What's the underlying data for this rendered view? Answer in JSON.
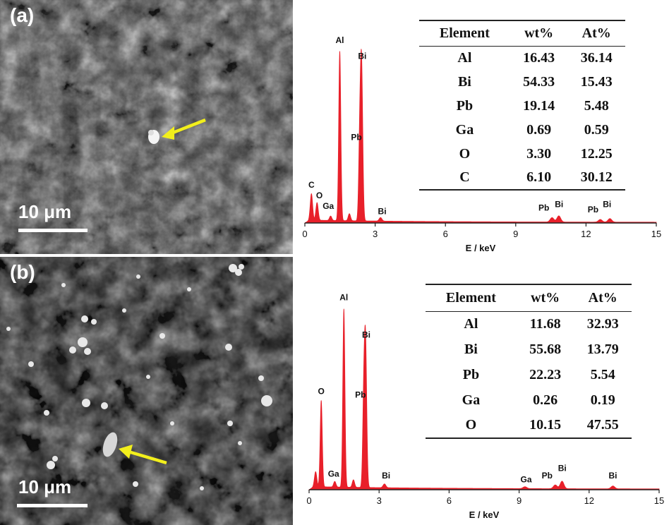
{
  "panels": [
    {
      "label": "(a)",
      "scale_bar": "10 μm",
      "eds_table": {
        "headers": [
          "Element",
          "wt%",
          "At%"
        ],
        "rows": [
          [
            "Al",
            "16.43",
            "36.14"
          ],
          [
            "Bi",
            "54.33",
            "15.43"
          ],
          [
            "Pb",
            "19.14",
            "5.48"
          ],
          [
            "Ga",
            "0.69",
            "0.59"
          ],
          [
            "O",
            "3.30",
            "12.25"
          ],
          [
            "C",
            "6.10",
            "30.12"
          ]
        ]
      }
    },
    {
      "label": "(b)",
      "scale_bar": "10 μm",
      "eds_table": {
        "headers": [
          "Element",
          "wt%",
          "At%"
        ],
        "rows": [
          [
            "Al",
            "11.68",
            "32.93"
          ],
          [
            "Bi",
            "55.68",
            "13.79"
          ],
          [
            "Pb",
            "22.23",
            "5.54"
          ],
          [
            "Ga",
            "0.26",
            "0.19"
          ],
          [
            "O",
            "10.15",
            "47.55"
          ]
        ]
      }
    }
  ],
  "colors": {
    "spectrum": "#e8202a",
    "arrow": "#f2ef1c",
    "axis": "#222222"
  },
  "chart_data": [
    {
      "type": "line",
      "xlabel": "E / keV",
      "ylabel": "",
      "xlim": [
        0,
        15
      ],
      "ylim": [
        0,
        100
      ],
      "xticks": [
        0,
        3,
        6,
        9,
        12,
        15
      ],
      "peaks": [
        {
          "e": 0.28,
          "h": 15,
          "w": 0.05
        },
        {
          "e": 0.52,
          "h": 10,
          "w": 0.05
        },
        {
          "e": 1.1,
          "h": 2.5,
          "w": 0.05
        },
        {
          "e": 1.49,
          "h": 96,
          "w": 0.045
        },
        {
          "e": 1.9,
          "h": 4,
          "w": 0.05
        },
        {
          "e": 2.34,
          "h": 40,
          "w": 0.045
        },
        {
          "e": 2.42,
          "h": 87,
          "w": 0.05
        },
        {
          "e": 3.23,
          "h": 2,
          "w": 0.06
        },
        {
          "e": 10.55,
          "h": 2.5,
          "w": 0.08
        },
        {
          "e": 10.84,
          "h": 3.5,
          "w": 0.08
        },
        {
          "e": 12.61,
          "h": 1.5,
          "w": 0.08
        },
        {
          "e": 13.02,
          "h": 2,
          "w": 0.08
        }
      ],
      "peak_labels": [
        {
          "text": "C",
          "x": 0.28,
          "y": 20
        },
        {
          "text": "O",
          "x": 0.62,
          "y": 14
        },
        {
          "text": "Ga",
          "x": 1.0,
          "y": 8
        },
        {
          "text": "Al",
          "x": 1.49,
          "y": 102
        },
        {
          "text": "Bi",
          "x": 2.45,
          "y": 93
        },
        {
          "text": "Pb",
          "x": 2.2,
          "y": 47
        },
        {
          "text": "Bi",
          "x": 3.3,
          "y": 5
        },
        {
          "text": "Pb",
          "x": 10.2,
          "y": 7
        },
        {
          "text": "Bi",
          "x": 10.85,
          "y": 9
        },
        {
          "text": "Pb",
          "x": 12.3,
          "y": 6
        },
        {
          "text": "Bi",
          "x": 12.9,
          "y": 9
        }
      ]
    },
    {
      "type": "line",
      "xlabel": "E / keV",
      "ylabel": "",
      "xlim": [
        0,
        15
      ],
      "ylim": [
        0,
        100
      ],
      "xticks": [
        0,
        3,
        6,
        9,
        12,
        15
      ],
      "peaks": [
        {
          "e": 0.28,
          "h": 8,
          "w": 0.05
        },
        {
          "e": 0.52,
          "h": 46,
          "w": 0.045
        },
        {
          "e": 1.1,
          "h": 3,
          "w": 0.05
        },
        {
          "e": 1.49,
          "h": 95,
          "w": 0.045
        },
        {
          "e": 1.9,
          "h": 4,
          "w": 0.05
        },
        {
          "e": 2.34,
          "h": 42,
          "w": 0.045
        },
        {
          "e": 2.42,
          "h": 75,
          "w": 0.05
        },
        {
          "e": 3.23,
          "h": 2,
          "w": 0.06
        },
        {
          "e": 9.25,
          "h": 1,
          "w": 0.08
        },
        {
          "e": 10.55,
          "h": 2,
          "w": 0.08
        },
        {
          "e": 10.84,
          "h": 4,
          "w": 0.08
        },
        {
          "e": 13.02,
          "h": 1.5,
          "w": 0.08
        }
      ],
      "peak_labels": [
        {
          "text": "O",
          "x": 0.52,
          "y": 51
        },
        {
          "text": "Ga",
          "x": 1.05,
          "y": 7
        },
        {
          "text": "Al",
          "x": 1.49,
          "y": 101
        },
        {
          "text": "Bi",
          "x": 2.45,
          "y": 81
        },
        {
          "text": "Pb",
          "x": 2.2,
          "y": 49
        },
        {
          "text": "Bi",
          "x": 3.3,
          "y": 6
        },
        {
          "text": "Ga",
          "x": 9.3,
          "y": 4
        },
        {
          "text": "Pb",
          "x": 10.2,
          "y": 6
        },
        {
          "text": "Bi",
          "x": 10.85,
          "y": 10
        },
        {
          "text": "Bi",
          "x": 13.02,
          "y": 6
        }
      ]
    }
  ]
}
